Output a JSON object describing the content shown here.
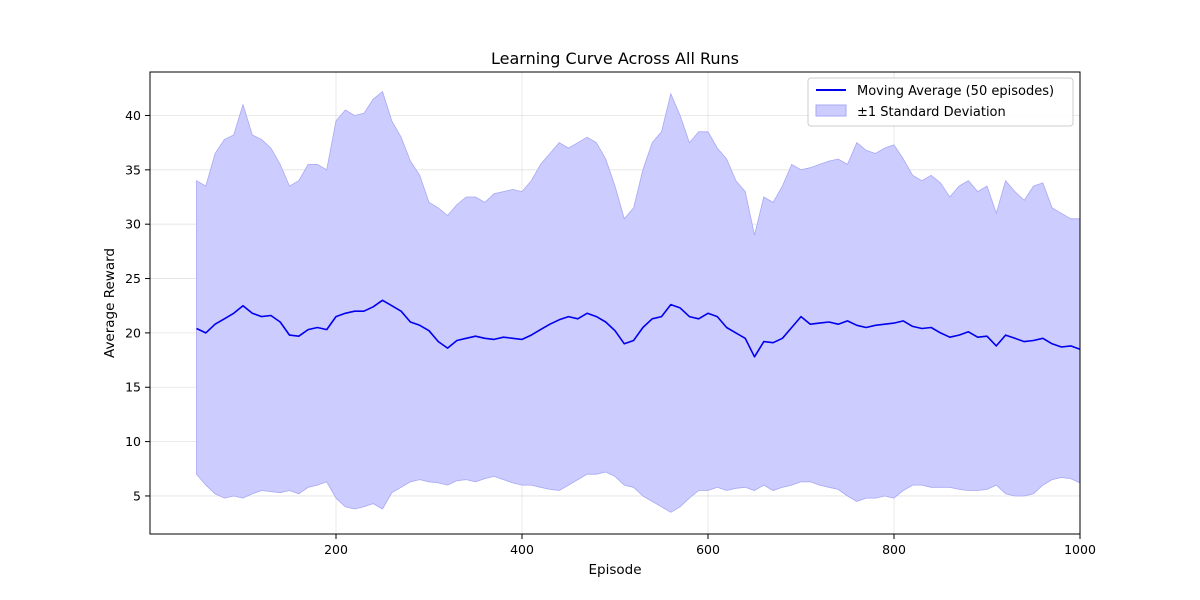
{
  "chart_data": {
    "type": "line",
    "title": "Learning Curve Across All Runs",
    "xlabel": "Episode",
    "ylabel": "Average Reward",
    "xlim": [
      0,
      1000
    ],
    "ylim": [
      1.5,
      44
    ],
    "x_ticks": [
      200,
      400,
      600,
      800,
      1000
    ],
    "y_ticks": [
      5,
      10,
      15,
      20,
      25,
      30,
      35,
      40
    ],
    "grid": true,
    "legend_position": "top-right",
    "colors": {
      "line": "#0000ee",
      "band_fill": "#ccccff",
      "band_edge": "#a8a8f4"
    },
    "series": [
      {
        "name": "Moving Average (50 episodes)",
        "kind": "line",
        "x": [
          50,
          60,
          70,
          80,
          90,
          100,
          110,
          120,
          130,
          140,
          150,
          160,
          170,
          180,
          190,
          200,
          210,
          220,
          230,
          240,
          250,
          260,
          270,
          280,
          290,
          300,
          310,
          320,
          330,
          340,
          350,
          360,
          370,
          380,
          390,
          400,
          410,
          420,
          430,
          440,
          450,
          460,
          470,
          480,
          490,
          500,
          510,
          520,
          530,
          540,
          550,
          560,
          570,
          580,
          590,
          600,
          610,
          620,
          630,
          640,
          650,
          660,
          670,
          680,
          690,
          700,
          710,
          720,
          730,
          740,
          750,
          760,
          770,
          780,
          790,
          800,
          810,
          820,
          830,
          840,
          850,
          860,
          870,
          880,
          890,
          900,
          910,
          920,
          930,
          940,
          950,
          960,
          970,
          980,
          990,
          1000
        ],
        "y": [
          20.4,
          20.0,
          20.8,
          21.3,
          21.8,
          22.5,
          21.8,
          21.5,
          21.6,
          21.0,
          19.8,
          19.7,
          20.3,
          20.5,
          20.3,
          21.5,
          21.8,
          22.0,
          22.0,
          22.4,
          23.0,
          22.5,
          22.0,
          21.0,
          20.7,
          20.2,
          19.2,
          18.6,
          19.3,
          19.5,
          19.7,
          19.5,
          19.4,
          19.6,
          19.5,
          19.4,
          19.8,
          20.3,
          20.8,
          21.2,
          21.5,
          21.3,
          21.8,
          21.5,
          21.0,
          20.2,
          19.0,
          19.3,
          20.5,
          21.3,
          21.5,
          22.6,
          22.3,
          21.5,
          21.3,
          21.8,
          21.5,
          20.5,
          20.0,
          19.5,
          17.8,
          19.2,
          19.1,
          19.5,
          20.5,
          21.5,
          20.8,
          20.9,
          21.0,
          20.8,
          21.1,
          20.7,
          20.5,
          20.7,
          20.8,
          20.9,
          21.1,
          20.6,
          20.4,
          20.5,
          20.0,
          19.6,
          19.8,
          20.1,
          19.6,
          19.7,
          18.8,
          19.8,
          19.5,
          19.2,
          19.3,
          19.5,
          19.0,
          18.7,
          18.8,
          18.5
        ]
      },
      {
        "name": "±1 Standard Deviation",
        "kind": "band",
        "x": [
          50,
          60,
          70,
          80,
          90,
          100,
          110,
          120,
          130,
          140,
          150,
          160,
          170,
          180,
          190,
          200,
          210,
          220,
          230,
          240,
          250,
          260,
          270,
          280,
          290,
          300,
          310,
          320,
          330,
          340,
          350,
          360,
          370,
          380,
          390,
          400,
          410,
          420,
          430,
          440,
          450,
          460,
          470,
          480,
          490,
          500,
          510,
          520,
          530,
          540,
          550,
          560,
          570,
          580,
          590,
          600,
          610,
          620,
          630,
          640,
          650,
          660,
          670,
          680,
          690,
          700,
          710,
          720,
          730,
          740,
          750,
          760,
          770,
          780,
          790,
          800,
          810,
          820,
          830,
          840,
          850,
          860,
          870,
          880,
          890,
          900,
          910,
          920,
          930,
          940,
          950,
          960,
          970,
          980,
          990,
          1000
        ],
        "upper": [
          34.0,
          33.5,
          36.5,
          37.8,
          38.2,
          41.0,
          38.2,
          37.8,
          37.0,
          35.5,
          33.5,
          34.0,
          35.5,
          35.5,
          35.0,
          39.5,
          40.5,
          40.0,
          40.2,
          41.5,
          42.2,
          39.5,
          38.0,
          35.8,
          34.5,
          32.0,
          31.5,
          30.8,
          31.8,
          32.5,
          32.5,
          32.0,
          32.8,
          33.0,
          33.2,
          33.0,
          34.0,
          35.5,
          36.5,
          37.5,
          37.0,
          37.5,
          38.0,
          37.5,
          36.0,
          33.5,
          30.5,
          31.5,
          35.0,
          37.5,
          38.5,
          42.0,
          40.0,
          37.5,
          38.5,
          38.5,
          37.0,
          36.0,
          34.0,
          33.0,
          29.0,
          32.5,
          32.0,
          33.5,
          35.5,
          35.0,
          35.2,
          35.5,
          35.8,
          36.0,
          35.5,
          37.5,
          36.8,
          36.5,
          37.0,
          37.3,
          36.0,
          34.5,
          34.0,
          34.5,
          33.8,
          32.5,
          33.5,
          34.0,
          33.0,
          33.5,
          31.0,
          34.0,
          33.0,
          32.2,
          33.5,
          33.8,
          31.5,
          31.0,
          30.5,
          30.5
        ],
        "lower": [
          7.0,
          6.0,
          5.2,
          4.8,
          5.0,
          4.8,
          5.2,
          5.5,
          5.4,
          5.3,
          5.5,
          5.2,
          5.8,
          6.0,
          6.3,
          4.8,
          4.0,
          3.8,
          4.0,
          4.3,
          3.8,
          5.3,
          5.8,
          6.3,
          6.5,
          6.3,
          6.2,
          6.0,
          6.4,
          6.5,
          6.3,
          6.6,
          6.8,
          6.5,
          6.2,
          6.0,
          6.0,
          5.8,
          5.6,
          5.5,
          6.0,
          6.5,
          7.0,
          7.0,
          7.2,
          6.8,
          6.0,
          5.8,
          5.0,
          4.5,
          4.0,
          3.5,
          4.0,
          4.8,
          5.5,
          5.5,
          5.8,
          5.5,
          5.7,
          5.8,
          5.5,
          6.0,
          5.5,
          5.8,
          6.0,
          6.3,
          6.3,
          6.0,
          5.8,
          5.6,
          5.0,
          4.5,
          4.8,
          4.8,
          5.0,
          4.8,
          5.5,
          6.0,
          6.0,
          5.8,
          5.8,
          5.8,
          5.6,
          5.5,
          5.5,
          5.6,
          6.0,
          5.2,
          5.0,
          5.0,
          5.2,
          6.0,
          6.5,
          6.7,
          6.6,
          6.2
        ]
      }
    ]
  }
}
